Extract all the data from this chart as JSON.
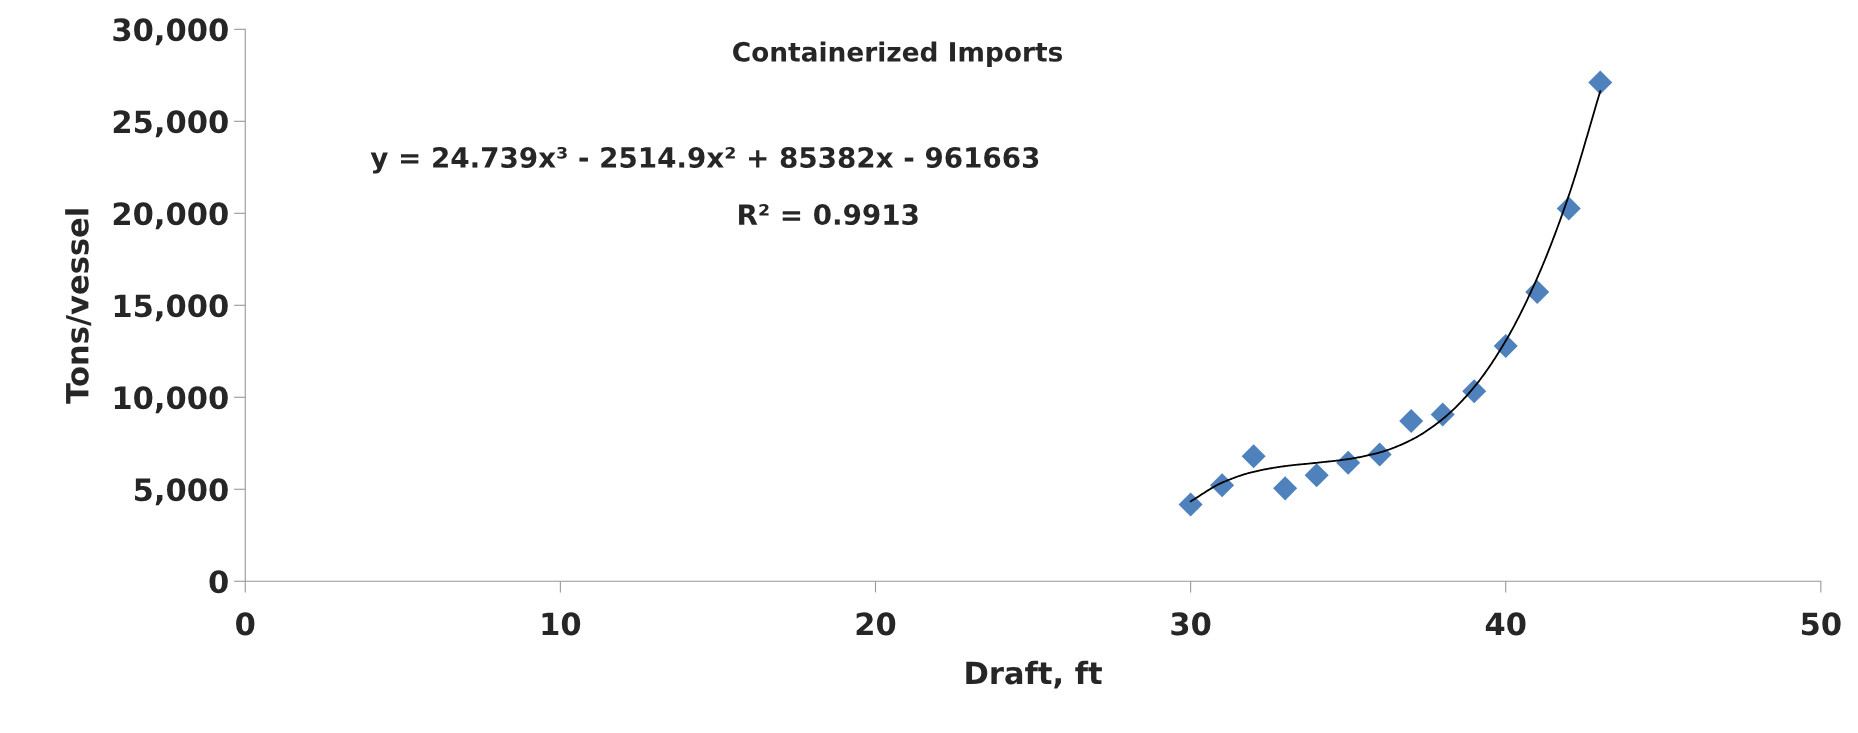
{
  "chart_data": {
    "type": "scatter",
    "title": "Containerized Imports",
    "xlabel": "Draft, ft",
    "ylabel": "Tons/vessel",
    "annotations": [
      "y = 24.739x³ - 2514.9x² + 85382x - 961663",
      "R² = 0.9913"
    ],
    "x": [
      30,
      31,
      32,
      33,
      34,
      35,
      36,
      37,
      38,
      39,
      40,
      41,
      42,
      43
    ],
    "series": [
      {
        "color": "#4f81bd",
        "marker": "diamond",
        "values": [
          4170,
          5220,
          6790,
          5050,
          5760,
          6440,
          6890,
          8710,
          9060,
          10330,
          12790,
          15720,
          20260,
          27110
        ]
      },
      {
        "type": "line",
        "color": "#000000",
        "line_style": "solid",
        "x": [
          30,
          31,
          32,
          33,
          34,
          35,
          36,
          37,
          38,
          39,
          40,
          41,
          42,
          43
        ],
        "values": [
          4340,
          5360,
          5950,
          6260,
          6440,
          6640,
          7000,
          7680,
          8820,
          10560,
          13070,
          16490,
          20960,
          26640
        ]
      }
    ],
    "xlim": [
      0,
      50
    ],
    "xticks": [
      0,
      10,
      20,
      30,
      40,
      50
    ],
    "ylim": [
      0,
      30000
    ],
    "yticks": [
      {
        "value": 0,
        "label": "0"
      },
      {
        "value": 5000,
        "label": "5,000"
      },
      {
        "value": 10000,
        "label": "10,000"
      },
      {
        "value": 15000,
        "label": "15,000"
      },
      {
        "value": 20000,
        "label": "20,000"
      },
      {
        "value": 25000,
        "label": "25,000"
      },
      {
        "value": 30000,
        "label": "30,000"
      }
    ],
    "grid": false
  }
}
